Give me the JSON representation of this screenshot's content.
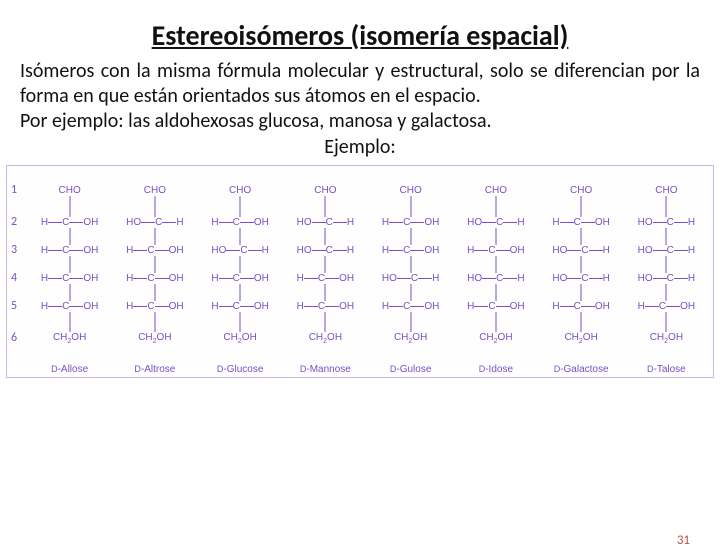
{
  "title": "Estereoisómeros (isomería espacial)",
  "paragraph": "Isómeros con la misma fórmula molecular y estructural, solo se diferencian por la forma en que están orientados sus átomos en el espacio.",
  "example_line": "Por ejemplo: las aldohexosas glucosa, manosa y  galactosa.",
  "example_title": "Ejemplo:",
  "page_number": "31",
  "colors": {
    "title": "#111111",
    "text": "#111111",
    "diagram_text": "#7a4fc7",
    "diagram_border": "#c9b8e6",
    "page_num": "#c0504d",
    "background": "#ffffff"
  },
  "fonts": {
    "title_size": 28,
    "body_size": 20,
    "formula_size": 10,
    "name_size": 10,
    "rownum_size": 12
  },
  "diagram": {
    "row_numbers": [
      "1",
      "2",
      "3",
      "4",
      "5",
      "6"
    ],
    "top_formula": "CHO",
    "bottom_formula": "CH₂OH",
    "row5_left": "H",
    "row5_center": "C",
    "row5_right": "OH",
    "H": "H",
    "OH": "OH",
    "C": "C",
    "sugars": [
      {
        "name": "D-Allose",
        "cfg": [
          "R",
          "R",
          "R"
        ]
      },
      {
        "name": "D-Altrose",
        "cfg": [
          "L",
          "R",
          "R"
        ]
      },
      {
        "name": "D-Glucose",
        "cfg": [
          "R",
          "L",
          "R"
        ]
      },
      {
        "name": "D-Mannose",
        "cfg": [
          "L",
          "L",
          "R"
        ]
      },
      {
        "name": "D-Gulose",
        "cfg": [
          "R",
          "R",
          "L"
        ]
      },
      {
        "name": "D-Idose",
        "cfg": [
          "L",
          "R",
          "L"
        ]
      },
      {
        "name": "D-Galactose",
        "cfg": [
          "R",
          "L",
          "L"
        ]
      },
      {
        "name": "D-Talose",
        "cfg": [
          "L",
          "L",
          "L"
        ]
      }
    ]
  }
}
